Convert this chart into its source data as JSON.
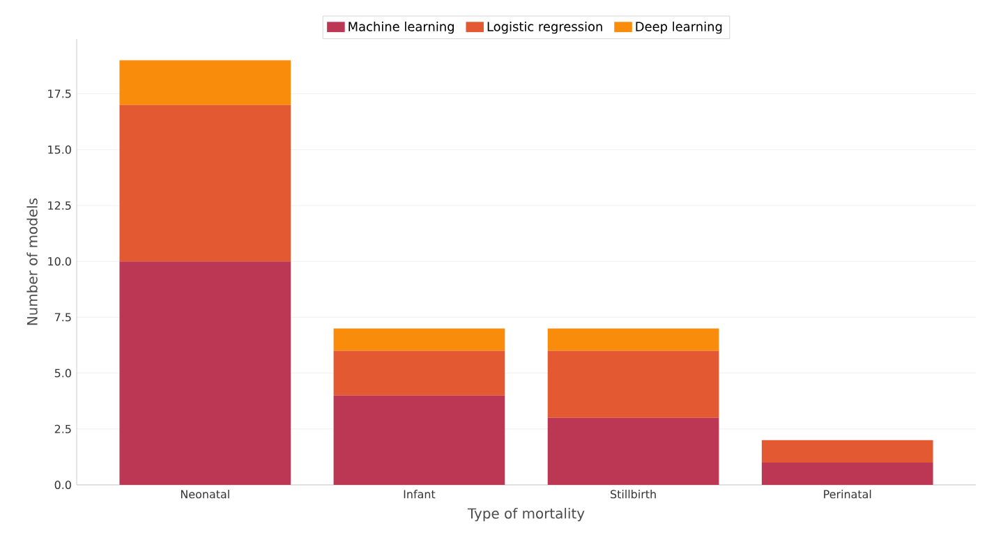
{
  "chart_data": {
    "type": "bar",
    "stacked": true,
    "xlabel": "Type of mortality",
    "ylabel": "Number of models",
    "categories": [
      "Neonatal",
      "Infant",
      "Stillbirth",
      "Perinatal"
    ],
    "series": [
      {
        "name": "Machine learning",
        "color": "#bc3754",
        "values": [
          10,
          4,
          3,
          1
        ]
      },
      {
        "name": "Logistic regression",
        "color": "#e35932",
        "values": [
          7,
          2,
          3,
          1
        ]
      },
      {
        "name": "Deep learning",
        "color": "#f98c0a",
        "values": [
          2,
          1,
          1,
          0
        ]
      }
    ],
    "ylim": [
      0,
      19.95
    ],
    "yticks": [
      {
        "value": 0,
        "label": "0.0"
      },
      2.5,
      {
        "value": 5,
        "label": "5.0"
      },
      7.5,
      {
        "value": 10,
        "label": "10.0"
      },
      12.5,
      {
        "value": 15,
        "label": "15.0"
      },
      17.5
    ],
    "grid": "y",
    "legend": "top"
  }
}
